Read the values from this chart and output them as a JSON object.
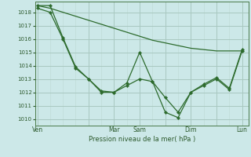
{
  "background_color": "#cce8e8",
  "grid_color_major": "#a8c8c0",
  "grid_color_minor": "#c0dcd8",
  "line_color": "#2d6b2d",
  "marker_color": "#2d6b2d",
  "xlabel": "Pression niveau de la mer( hPa )",
  "ylim": [
    1009.5,
    1018.8
  ],
  "yticks": [
    1010,
    1011,
    1012,
    1013,
    1014,
    1015,
    1016,
    1017,
    1018
  ],
  "xtick_labels": [
    "Ven",
    "",
    "Mar",
    "Sam",
    "",
    "Dim",
    "",
    "Lun"
  ],
  "xtick_positions": [
    0,
    24,
    36,
    48,
    60,
    72,
    84,
    96
  ],
  "xlim": [
    -1,
    99
  ],
  "series1": {
    "x": [
      0,
      6,
      12,
      18,
      24,
      30,
      36,
      42,
      48,
      54,
      60,
      66,
      72,
      78,
      84,
      90,
      96
    ],
    "y": [
      1018.5,
      1018.3,
      1018.0,
      1017.7,
      1017.4,
      1017.1,
      1016.8,
      1016.5,
      1016.2,
      1015.9,
      1015.7,
      1015.5,
      1015.3,
      1015.2,
      1015.1,
      1015.1,
      1015.1
    ]
  },
  "series2": {
    "x": [
      0,
      6,
      12,
      18,
      24,
      30,
      36,
      42,
      48,
      54,
      60,
      66,
      72,
      78,
      84,
      90,
      96
    ],
    "y": [
      1018.5,
      1018.5,
      1016.1,
      1013.9,
      1013.0,
      1012.1,
      1012.0,
      1012.7,
      1015.0,
      1012.8,
      1011.6,
      1010.5,
      1012.0,
      1012.5,
      1013.0,
      1012.2,
      1015.1
    ]
  },
  "series3": {
    "x": [
      0,
      6,
      12,
      18,
      24,
      30,
      36,
      42,
      48,
      54,
      60,
      66,
      72,
      78,
      84,
      90,
      96
    ],
    "y": [
      1018.3,
      1018.0,
      1016.0,
      1013.8,
      1013.0,
      1012.0,
      1012.0,
      1012.5,
      1013.0,
      1012.8,
      1010.5,
      1010.1,
      1012.0,
      1012.6,
      1013.1,
      1012.3,
      1015.2
    ]
  }
}
